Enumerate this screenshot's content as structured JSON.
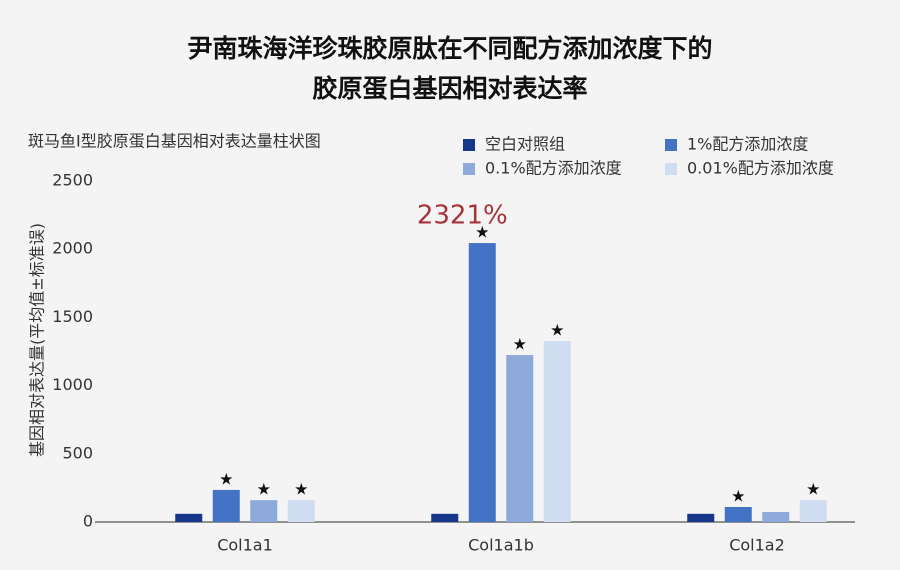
{
  "chart_data": {
    "type": "bar",
    "title": [
      "尹南珠海洋珍珠胶原肽在不同配方添加浓度下的",
      "胶原蛋白基因相对表达率"
    ],
    "subtitle": "斑马鱼I型胶原蛋白基因相对表达量柱状图",
    "y_label": "基因相对表达量(平均值±标准误)",
    "categories": [
      "Col1a1",
      "Col1a1b",
      "Col1a2"
    ],
    "series": [
      {
        "name": "空白对照组",
        "color": "#17378a",
        "values": [
          60,
          60,
          60
        ],
        "significance": [
          null,
          null,
          null
        ]
      },
      {
        "name": "1%配方添加浓度",
        "color": "#4472c4",
        "values": [
          235,
          2045,
          110
        ],
        "significance": [
          "★",
          "★",
          "★"
        ]
      },
      {
        "name": "0.1%配方添加浓度",
        "color": "#8eaadb",
        "values": [
          160,
          1224,
          73
        ],
        "significance": [
          "★",
          "★",
          null
        ]
      },
      {
        "name": "0.01%配方添加浓度",
        "color": "#cfdcf2",
        "values": [
          160,
          1327,
          160
        ],
        "significance": [
          "★",
          "★",
          "★"
        ]
      }
    ],
    "annotation": "2321%",
    "ylim": [
      0,
      2500
    ],
    "yticks": [
      0,
      500,
      1000,
      1500,
      2000,
      2500
    ],
    "grid": false
  }
}
